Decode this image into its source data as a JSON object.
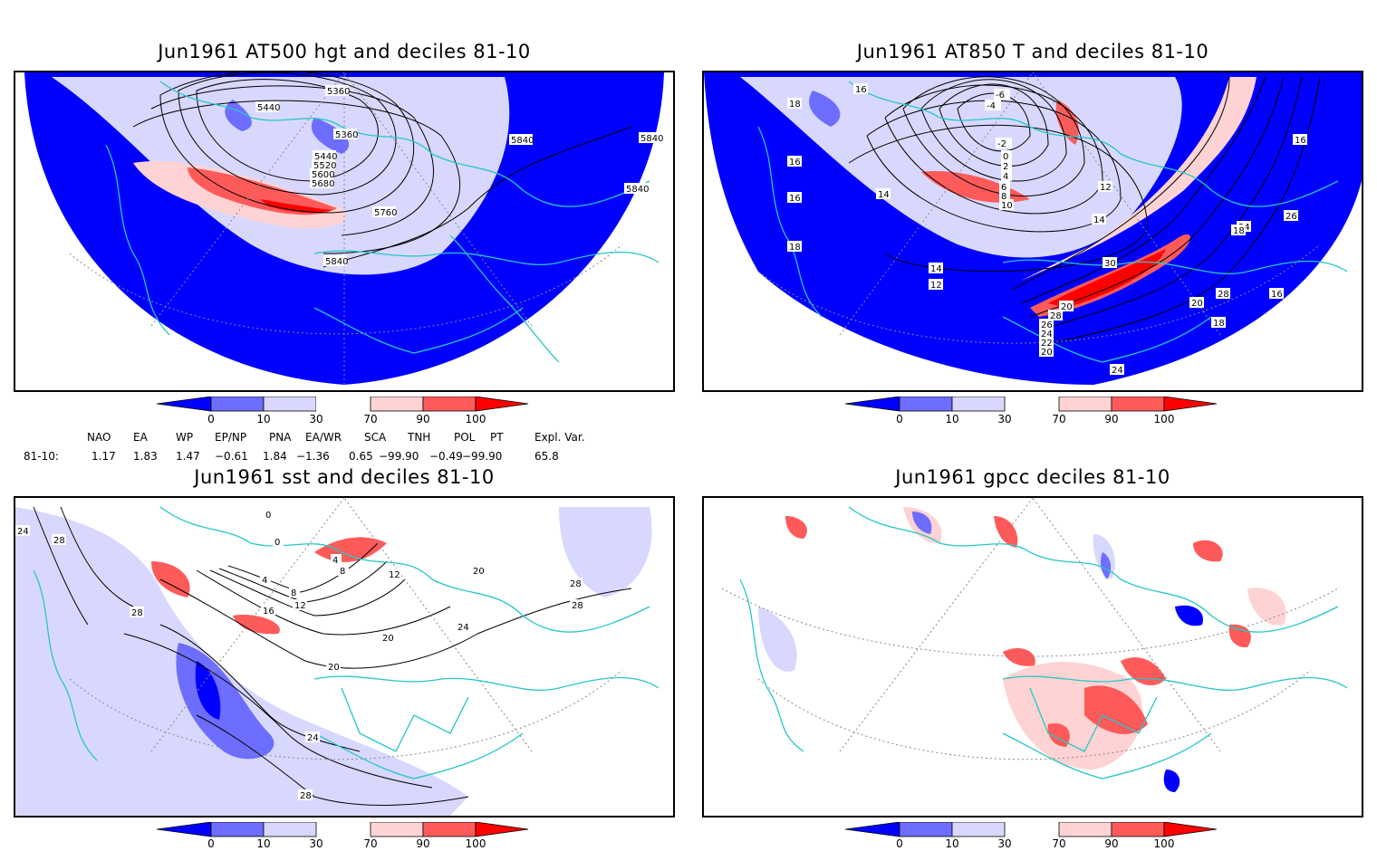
{
  "colors": {
    "dec_0_10": "#0000ff",
    "dec_10_30": "#6d6dff",
    "dec_30_neutral": "#d8d8ff",
    "dec_70_90": "#ffd3d3",
    "dec_90_100": "#ff5a5a",
    "dec_top": "#ff0000",
    "coast": "#26c6c6",
    "contour": "#000000"
  },
  "panels": [
    {
      "title": "Jun1961 AT500 hgt and deciles 81-10",
      "contour_labels": [
        "5360",
        "5440",
        "5360",
        "5440",
        "5520",
        "5600",
        "5680",
        "5760",
        "5840",
        "5840",
        "5840",
        "5840"
      ]
    },
    {
      "title": "Jun1961 AT850 T and deciles 81-10",
      "contour_labels": [
        "16",
        "18",
        "-6",
        "-4",
        "-2",
        "0",
        "2",
        "4",
        "6",
        "8",
        "10",
        "12",
        "14",
        "16",
        "18",
        "20",
        "24",
        "26",
        "28",
        "30",
        "14",
        "12",
        "14",
        "16",
        "16",
        "18",
        "24",
        "16",
        "20",
        "28",
        "26",
        "24",
        "22",
        "20",
        "18",
        "16"
      ]
    },
    {
      "title": "Jun1961 sst and deciles 81-10",
      "contour_labels": [
        "24",
        "28",
        "28",
        "0",
        "0",
        "4",
        "8",
        "12",
        "16",
        "20",
        "24",
        "28",
        "12",
        "20",
        "24",
        "28",
        "28",
        "20",
        "4",
        "8"
      ]
    },
    {
      "title": "Jun1961 gpcc deciles 81-10",
      "contour_labels": []
    }
  ],
  "colorbar": {
    "ticks": [
      "0",
      "10",
      "30",
      "70",
      "90",
      "100"
    ]
  },
  "indices": {
    "headers": [
      "NAO",
      "EA",
      "WP",
      "EP/NP",
      "PNA",
      "EA/WR",
      "SCA",
      "TNH",
      "POL",
      "PT",
      "Expl. Var."
    ],
    "row_label": "81-10:",
    "values": [
      "1.17",
      "1.83",
      "1.47",
      "−0.61",
      "1.84",
      "−1.36",
      "0.65",
      "−99.90",
      "−0.49",
      "−99.90",
      "65.8"
    ]
  }
}
